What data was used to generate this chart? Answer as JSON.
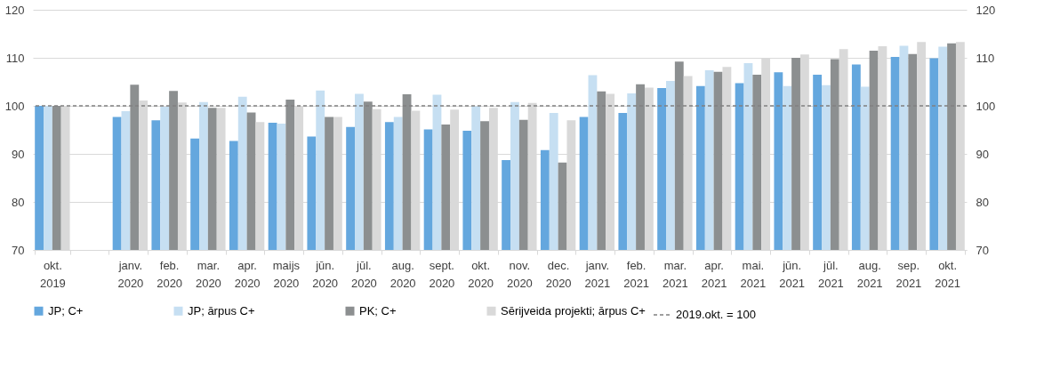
{
  "chart_data": {
    "type": "bar",
    "categories": [
      "okt. 2019",
      null,
      "janv. 2020",
      "feb. 2020",
      "mar. 2020",
      "apr. 2020",
      "maijs 2020",
      "jūn. 2020",
      "jūl. 2020",
      "aug. 2020",
      "sept. 2020",
      "okt. 2020",
      "nov. 2020",
      "dec. 2020",
      "janv. 2021",
      "feb. 2021",
      "mar. 2021",
      "apr. 2021",
      "mai. 2021",
      "jūn. 2021",
      "jūl. 2021",
      "aug. 2021",
      "sep. 2021",
      "okt. 2021"
    ],
    "series": [
      {
        "name": "JP; C+",
        "color": "#64a7de",
        "values": [
          100,
          null,
          97.7,
          97.0,
          93.2,
          92.7,
          96.5,
          93.6,
          95.6,
          96.6,
          95.1,
          94.8,
          88.7,
          90.8,
          97.7,
          98.5,
          103.7,
          104.1,
          104.7,
          107.0,
          106.5,
          108.6,
          110.2,
          109.9
        ]
      },
      {
        "name": "JP; ārpus C+",
        "color": "#c6dff2",
        "values": [
          100,
          null,
          98.9,
          99.8,
          100.8,
          101.9,
          96.3,
          103.2,
          102.5,
          97.7,
          102.3,
          99.9,
          100.8,
          98.5,
          106.4,
          102.6,
          105.2,
          107.4,
          108.9,
          104.1,
          104.3,
          104.0,
          112.5,
          112.3
        ]
      },
      {
        "name": "PK; C+",
        "color": "#8c8f90",
        "values": [
          100,
          null,
          104.4,
          103.1,
          99.6,
          98.6,
          101.3,
          97.7,
          100.9,
          102.4,
          96.1,
          96.8,
          97.1,
          88.2,
          103.0,
          104.5,
          109.2,
          107.1,
          106.5,
          110.0,
          109.7,
          111.5,
          110.8,
          113.0
        ]
      },
      {
        "name": "Sērijveida projekti; ārpus C+",
        "color": "#d9d9d9",
        "values": [
          100,
          null,
          101.1,
          100.7,
          99.6,
          96.6,
          99.8,
          97.7,
          99.3,
          99.0,
          99.2,
          99.6,
          100.6,
          97.0,
          102.5,
          103.8,
          106.2,
          108.1,
          110.0,
          110.7,
          111.8,
          112.4,
          113.3,
          113.3
        ]
      }
    ],
    "ylim": [
      70,
      120
    ],
    "yticks": [
      70,
      80,
      90,
      100,
      110,
      120
    ],
    "y2lim": [
      70,
      120
    ],
    "y2ticks": [
      70,
      80,
      90,
      100,
      110,
      120
    ],
    "ref_lines": [
      {
        "axis": "y",
        "value": 100,
        "label": "2019.okt. = 100",
        "color": "#808080",
        "line_style": "dashed"
      }
    ],
    "grid": "y",
    "legend": "bottom"
  }
}
